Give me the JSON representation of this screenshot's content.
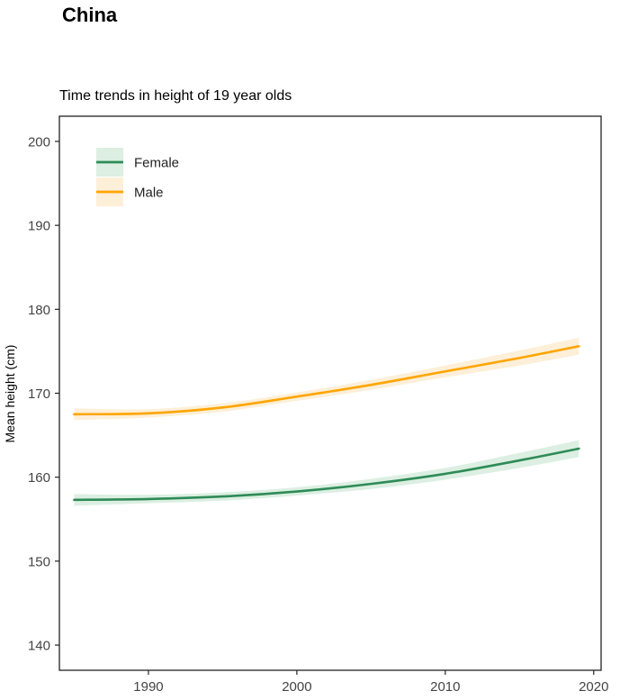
{
  "page": {
    "title": "China"
  },
  "chart_data": {
    "type": "line",
    "title": "Time trends in height of 19 year olds",
    "xlabel": "",
    "ylabel": "Mean height (cm)",
    "xlim": [
      1984,
      2020.5
    ],
    "ylim": [
      137,
      203
    ],
    "xticks": [
      1990,
      2000,
      2010,
      2020
    ],
    "yticks": [
      140,
      150,
      160,
      170,
      180,
      190,
      200
    ],
    "grid": false,
    "legend_position": "top-left",
    "x": [
      1985,
      1990,
      1995,
      2000,
      2005,
      2010,
      2015,
      2019
    ],
    "series": [
      {
        "name": "Female",
        "color": "#2e8b57",
        "band_color": "#dcefe2",
        "values": [
          157.3,
          157.4,
          157.7,
          158.3,
          159.2,
          160.4,
          162.0,
          163.4
        ],
        "lower": [
          156.6,
          156.9,
          157.2,
          157.8,
          158.6,
          159.7,
          161.1,
          162.4
        ],
        "upper": [
          158.0,
          157.9,
          158.2,
          158.8,
          159.8,
          161.1,
          162.9,
          164.4
        ]
      },
      {
        "name": "Male",
        "color": "#ffa500",
        "band_color": "#fdefd8",
        "values": [
          167.5,
          167.6,
          168.3,
          169.6,
          171.0,
          172.6,
          174.2,
          175.6
        ],
        "lower": [
          166.8,
          167.1,
          167.8,
          169.1,
          170.4,
          171.9,
          173.3,
          174.6
        ],
        "upper": [
          168.2,
          168.1,
          168.8,
          170.1,
          171.6,
          173.3,
          175.1,
          176.6
        ]
      }
    ]
  }
}
